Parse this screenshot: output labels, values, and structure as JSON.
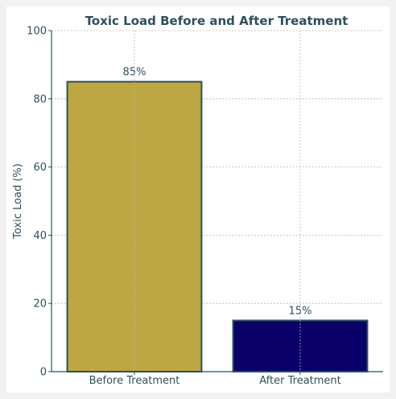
{
  "chart_data": {
    "type": "bar",
    "title": "Toxic Load Before and After Treatment",
    "xlabel": "",
    "ylabel": "Toxic Load (%)",
    "ylim": [
      0,
      100
    ],
    "yticks": [
      0,
      20,
      40,
      60,
      80,
      100
    ],
    "grid": true,
    "categories": [
      "Before Treatment",
      "After Treatment"
    ],
    "values": [
      85,
      15
    ],
    "data_labels": [
      "85%",
      "15%"
    ],
    "colors": [
      "#bda742",
      "#0a006a"
    ],
    "edge_color": "#2f4f5a"
  }
}
